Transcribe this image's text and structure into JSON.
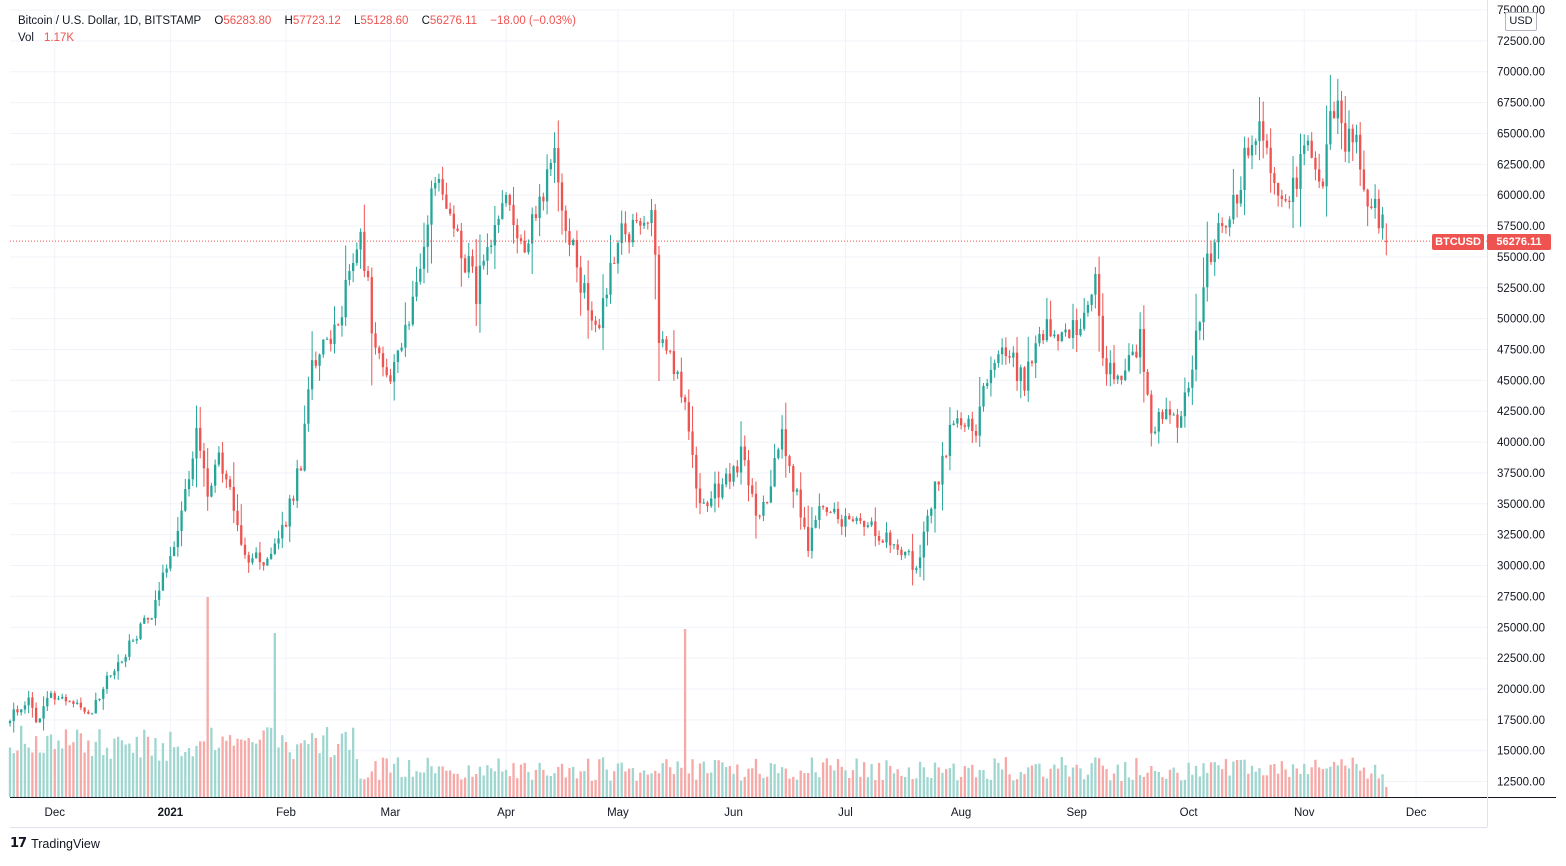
{
  "legend": {
    "symbol": "Bitcoin / U.S. Dollar, 1D, BITSTAMP",
    "o_label": "O",
    "o_value": "56283.80",
    "h_label": "H",
    "h_value": "57723.12",
    "l_label": "L",
    "l_value": "55128.60",
    "c_label": "C",
    "c_value": "56276.11",
    "change": "−18.00 (−0.03%)",
    "vol_label": "Vol",
    "vol_value": "1.17K"
  },
  "currency": "USD",
  "last_price_tag": {
    "symbol": "BTCUSD",
    "price": "56276.11"
  },
  "brand": {
    "logo": "17",
    "name": "TradingView"
  },
  "colors": {
    "up": "#26a69a",
    "down": "#ef5350",
    "up_vol": "#9fd6cf",
    "down_vol": "#f7a9a7",
    "grid": "#f0f3fa",
    "axis_text": "#131722"
  },
  "chart_data": {
    "type": "candlestick",
    "symbol": "BTCUSD",
    "interval": "1D",
    "y_axis": {
      "range": [
        11250,
        75000
      ],
      "ticks": [
        "12500.00",
        "15000.00",
        "17500.00",
        "20000.00",
        "22500.00",
        "25000.00",
        "27500.00",
        "30000.00",
        "32500.00",
        "35000.00",
        "37500.00",
        "40000.00",
        "42500.00",
        "45000.00",
        "47500.00",
        "50000.00",
        "52500.00",
        "55000.00",
        "57500.00",
        "60000.00",
        "62500.00",
        "65000.00",
        "67500.00",
        "70000.00",
        "72500.00",
        "75000.00"
      ]
    },
    "x_axis": {
      "range": [
        "2020-11-19",
        "2021-12-20"
      ],
      "ticks": [
        {
          "label": "Dec",
          "date": "2020-12-01",
          "bold": false
        },
        {
          "label": "2021",
          "date": "2021-01-01",
          "bold": true
        },
        {
          "label": "Feb",
          "date": "2021-02-01",
          "bold": false
        },
        {
          "label": "Mar",
          "date": "2021-03-01",
          "bold": false
        },
        {
          "label": "Apr",
          "date": "2021-04-01",
          "bold": false
        },
        {
          "label": "May",
          "date": "2021-05-01",
          "bold": false
        },
        {
          "label": "Jun",
          "date": "2021-06-01",
          "bold": false
        },
        {
          "label": "Jul",
          "date": "2021-07-01",
          "bold": false
        },
        {
          "label": "Aug",
          "date": "2021-08-01",
          "bold": false
        },
        {
          "label": "Sep",
          "date": "2021-09-01",
          "bold": false
        },
        {
          "label": "Oct",
          "date": "2021-10-01",
          "bold": false
        },
        {
          "label": "Nov",
          "date": "2021-11-01",
          "bold": false
        },
        {
          "label": "Dec",
          "date": "2021-12-01",
          "bold": false
        }
      ]
    },
    "candles": {
      "first_date": "2020-11-19",
      "last_date": "2021-11-23",
      "close_path": [
        [
          "2020-11-19",
          17800
        ],
        [
          "2020-11-24",
          19100
        ],
        [
          "2020-11-26",
          17200
        ],
        [
          "2020-11-30",
          19700
        ],
        [
          "2020-12-05",
          19150
        ],
        [
          "2020-12-11",
          18050
        ],
        [
          "2020-12-16",
          21300
        ],
        [
          "2020-12-21",
          23500
        ],
        [
          "2020-12-27",
          26300
        ],
        [
          "2021-01-02",
          32100
        ],
        [
          "2021-01-06",
          36800
        ],
        [
          "2021-01-08",
          40600
        ],
        [
          "2021-01-11",
          35500
        ],
        [
          "2021-01-14",
          39200
        ],
        [
          "2021-01-21",
          30800
        ],
        [
          "2021-01-27",
          30400
        ],
        [
          "2021-02-01",
          33500
        ],
        [
          "2021-02-05",
          38300
        ],
        [
          "2021-02-08",
          46400
        ],
        [
          "2021-02-14",
          48700
        ],
        [
          "2021-02-21",
          57500
        ],
        [
          "2021-02-24",
          49700
        ],
        [
          "2021-02-28",
          45200
        ],
        [
          "2021-03-05",
          48800
        ],
        [
          "2021-03-10",
          55900
        ],
        [
          "2021-03-13",
          61200
        ],
        [
          "2021-03-18",
          57600
        ],
        [
          "2021-03-24",
          52300
        ],
        [
          "2021-03-28",
          55800
        ],
        [
          "2021-04-01",
          58800
        ],
        [
          "2021-04-07",
          56000
        ],
        [
          "2021-04-10",
          59700
        ],
        [
          "2021-04-14",
          63500
        ],
        [
          "2021-04-18",
          56200
        ],
        [
          "2021-04-25",
          49000
        ],
        [
          "2021-05-02",
          56600
        ],
        [
          "2021-05-07",
          57300
        ],
        [
          "2021-05-10",
          59500
        ],
        [
          "2021-05-12",
          49100
        ],
        [
          "2021-05-16",
          46400
        ],
        [
          "2021-05-19",
          42800
        ],
        [
          "2021-05-23",
          34600
        ],
        [
          "2021-05-28",
          36200
        ],
        [
          "2021-06-03",
          38800
        ],
        [
          "2021-06-08",
          33500
        ],
        [
          "2021-06-14",
          40500
        ],
        [
          "2021-06-21",
          31600
        ],
        [
          "2021-06-24",
          34600
        ],
        [
          "2021-07-01",
          33500
        ],
        [
          "2021-07-08",
          32900
        ],
        [
          "2021-07-15",
          31800
        ],
        [
          "2021-07-20",
          29800
        ],
        [
          "2021-07-26",
          37300
        ],
        [
          "2021-07-30",
          41600
        ],
        [
          "2021-08-05",
          40900
        ],
        [
          "2021-08-09",
          46300
        ],
        [
          "2021-08-14",
          47100
        ],
        [
          "2021-08-18",
          44700
        ],
        [
          "2021-08-23",
          49300
        ],
        [
          "2021-08-27",
          49000
        ],
        [
          "2021-09-01",
          48800
        ],
        [
          "2021-09-06",
          52700
        ],
        [
          "2021-09-08",
          46100
        ],
        [
          "2021-09-13",
          44900
        ],
        [
          "2021-09-18",
          48300
        ],
        [
          "2021-09-21",
          40700
        ],
        [
          "2021-09-24",
          42800
        ],
        [
          "2021-09-29",
          41600
        ],
        [
          "2021-10-03",
          48200
        ],
        [
          "2021-10-06",
          55300
        ],
        [
          "2021-10-11",
          57500
        ],
        [
          "2021-10-15",
          61600
        ],
        [
          "2021-10-20",
          65900
        ],
        [
          "2021-10-24",
          61000
        ],
        [
          "2021-10-28",
          60400
        ],
        [
          "2021-11-02",
          63200
        ],
        [
          "2021-11-06",
          61400
        ],
        [
          "2021-11-09",
          67500
        ],
        [
          "2021-11-12",
          64200
        ],
        [
          "2021-11-15",
          63500
        ],
        [
          "2021-11-17",
          60000
        ],
        [
          "2021-11-20",
          59800
        ],
        [
          "2021-11-23",
          56276
        ]
      ],
      "last_candle": {
        "date": "2021-11-23",
        "open": 56283.8,
        "high": 57723.12,
        "low": 55128.6,
        "close": 56276.11,
        "volume": "1.17K"
      }
    },
    "volume": {
      "panel": "bottom overlay",
      "spikes": [
        {
          "date": "2021-01-11",
          "relative": 1.0
        },
        {
          "date": "2021-05-19",
          "relative": 0.84
        },
        {
          "date": "2021-01-29",
          "relative": 0.82
        }
      ]
    },
    "last_price_line": 56276.11,
    "grid": true,
    "legend_position": "top-left"
  }
}
